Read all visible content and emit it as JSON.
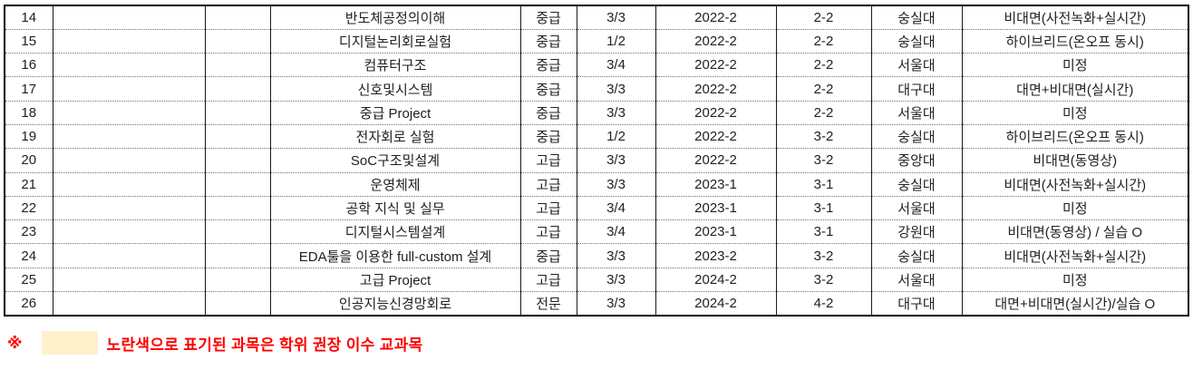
{
  "table": {
    "rows": [
      {
        "no": "14",
        "blank1": "",
        "blank2": "",
        "course": "반도체공정의이해",
        "level": "중급",
        "credits": "3/3",
        "semester": "2022-2",
        "grade_sem": "2-2",
        "university": "숭실대",
        "mode": "비대면(사전녹화+실시간)"
      },
      {
        "no": "15",
        "blank1": "",
        "blank2": "",
        "course": "디지털논리회로실험",
        "level": "중급",
        "credits": "1/2",
        "semester": "2022-2",
        "grade_sem": "2-2",
        "university": "숭실대",
        "mode": "하이브리드(온오프 동시)"
      },
      {
        "no": "16",
        "blank1": "",
        "blank2": "",
        "course": "컴퓨터구조",
        "level": "중급",
        "credits": "3/4",
        "semester": "2022-2",
        "grade_sem": "2-2",
        "university": "서울대",
        "mode": "미정"
      },
      {
        "no": "17",
        "blank1": "",
        "blank2": "",
        "course": "신호및시스템",
        "level": "중급",
        "credits": "3/3",
        "semester": "2022-2",
        "grade_sem": "2-2",
        "university": "대구대",
        "mode": "대면+비대면(실시간)"
      },
      {
        "no": "18",
        "blank1": "",
        "blank2": "",
        "course": "중급 Project",
        "level": "중급",
        "credits": "3/3",
        "semester": "2022-2",
        "grade_sem": "2-2",
        "university": "서울대",
        "mode": "미정"
      },
      {
        "no": "19",
        "blank1": "",
        "blank2": "",
        "course": "전자회로 실험",
        "level": "중급",
        "credits": "1/2",
        "semester": "2022-2",
        "grade_sem": "3-2",
        "university": "숭실대",
        "mode": "하이브리드(온오프 동시)"
      },
      {
        "no": "20",
        "blank1": "",
        "blank2": "",
        "course": "SoC구조및설계",
        "level": "고급",
        "credits": "3/3",
        "semester": "2022-2",
        "grade_sem": "3-2",
        "university": "중앙대",
        "mode": "비대면(동영상)"
      },
      {
        "no": "21",
        "blank1": "",
        "blank2": "",
        "course": "운영체제",
        "level": "고급",
        "credits": "3/3",
        "semester": "2023-1",
        "grade_sem": "3-1",
        "university": "숭실대",
        "mode": "비대면(사전녹화+실시간)"
      },
      {
        "no": "22",
        "blank1": "",
        "blank2": "",
        "course": "공학 지식 및 실무",
        "level": "고급",
        "credits": "3/4",
        "semester": "2023-1",
        "grade_sem": "3-1",
        "university": "서울대",
        "mode": "미정"
      },
      {
        "no": "23",
        "blank1": "",
        "blank2": "",
        "course": "디지털시스템설계",
        "level": "고급",
        "credits": "3/4",
        "semester": "2023-1",
        "grade_sem": "3-1",
        "university": "강원대",
        "mode": "비대면(동영상) / 실습 O"
      },
      {
        "no": "24",
        "blank1": "",
        "blank2": "",
        "course": "EDA툴을 이용한 full-custom 설계",
        "level": "중급",
        "credits": "3/3",
        "semester": "2023-2",
        "grade_sem": "3-2",
        "university": "숭실대",
        "mode": "비대면(사전녹화+실시간)"
      },
      {
        "no": "25",
        "blank1": "",
        "blank2": "",
        "course": "고급 Project",
        "level": "고급",
        "credits": "3/3",
        "semester": "2024-2",
        "grade_sem": "3-2",
        "university": "서울대",
        "mode": "미정"
      },
      {
        "no": "26",
        "blank1": "",
        "blank2": "",
        "course": "인공지능신경망회로",
        "level": "전문",
        "credits": "3/3",
        "semester": "2024-2",
        "grade_sem": "4-2",
        "university": "대구대",
        "mode": "대면+비대면(실시간)/실습 O"
      }
    ]
  },
  "footnote": {
    "marker": "※",
    "text": "노란색으로 표기된 과목은 학위 권장 이수 교과목",
    "highlight_color": "#FDF2CC",
    "text_color": "#FF0000"
  }
}
